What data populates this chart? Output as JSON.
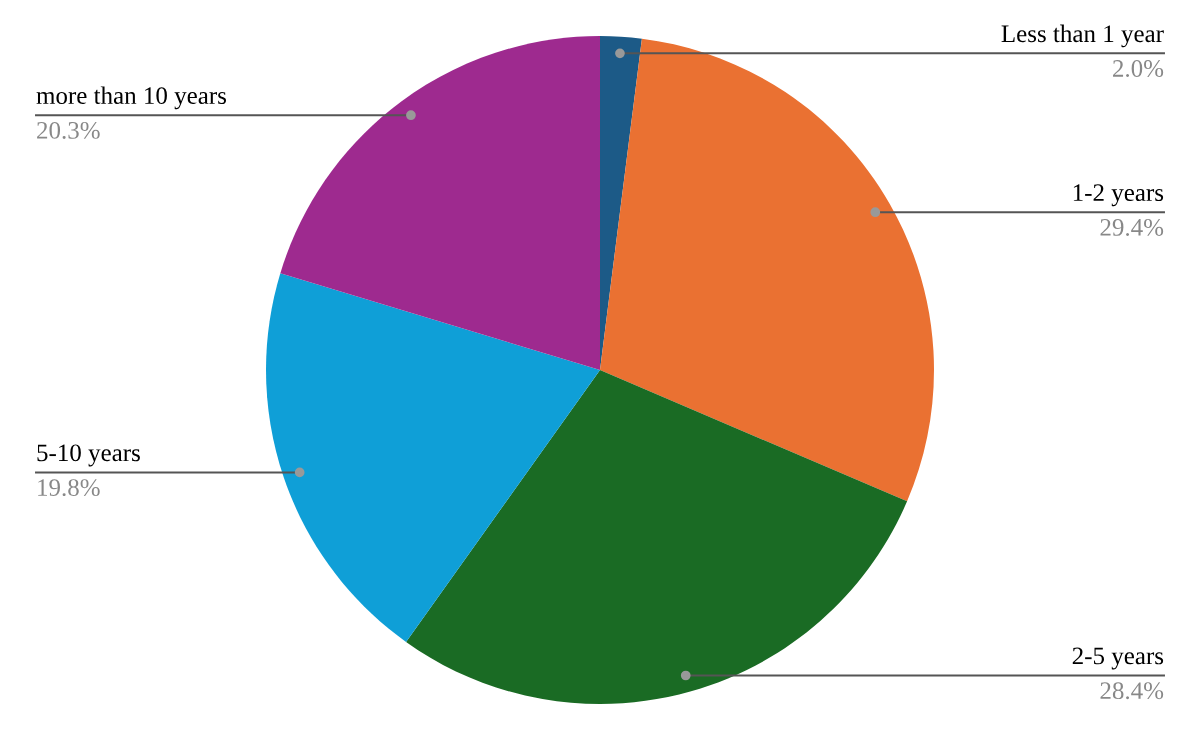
{
  "chart_data": {
    "type": "pie",
    "categories": [
      "Less than 1 year",
      "1-2 years",
      "2-5 years",
      "5-10 years",
      "more than 10 years"
    ],
    "values": [
      2.0,
      29.4,
      28.4,
      19.8,
      20.3
    ],
    "colors": [
      "#1c5a87",
      "#ea7132",
      "#1a6b24",
      "#0f9fd7",
      "#9e2a8f"
    ],
    "value_labels": [
      "2.0%",
      "29.4%",
      "28.4%",
      "19.8%",
      "20.3%"
    ]
  }
}
